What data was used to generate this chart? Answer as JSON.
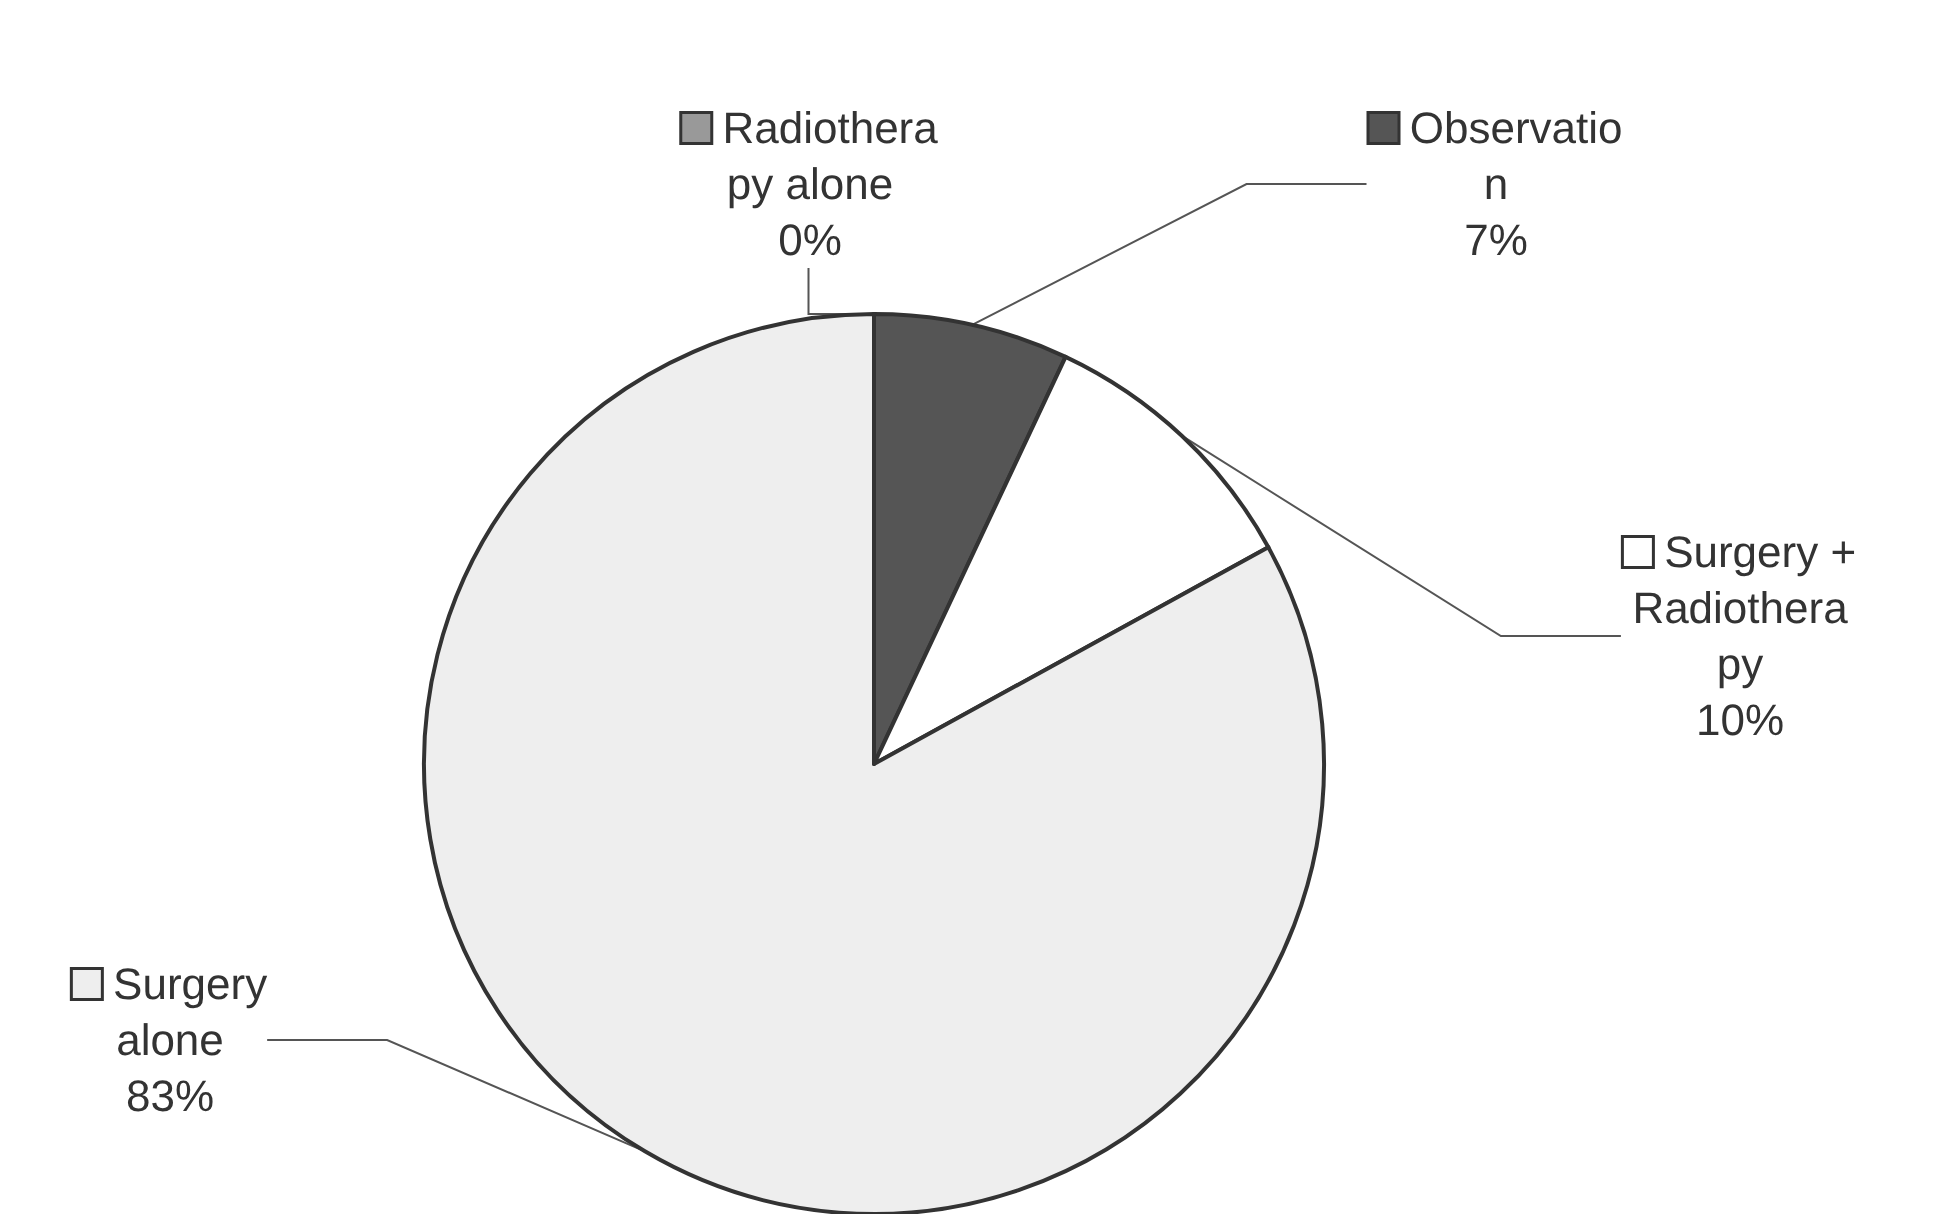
{
  "chart_data": {
    "type": "pie",
    "categories": [
      "Observatio\nn",
      "Surgery +\nRadiothera\npy",
      "Surgery\nalone",
      "Radiothera\npy alone"
    ],
    "values": [
      7,
      10,
      83,
      0
    ],
    "value_labels": [
      "7%",
      "10%",
      "83%",
      "0%"
    ],
    "colors": [
      "#555555",
      "#ffffff",
      "#eeeeee",
      "#999999"
    ],
    "legend": true
  }
}
